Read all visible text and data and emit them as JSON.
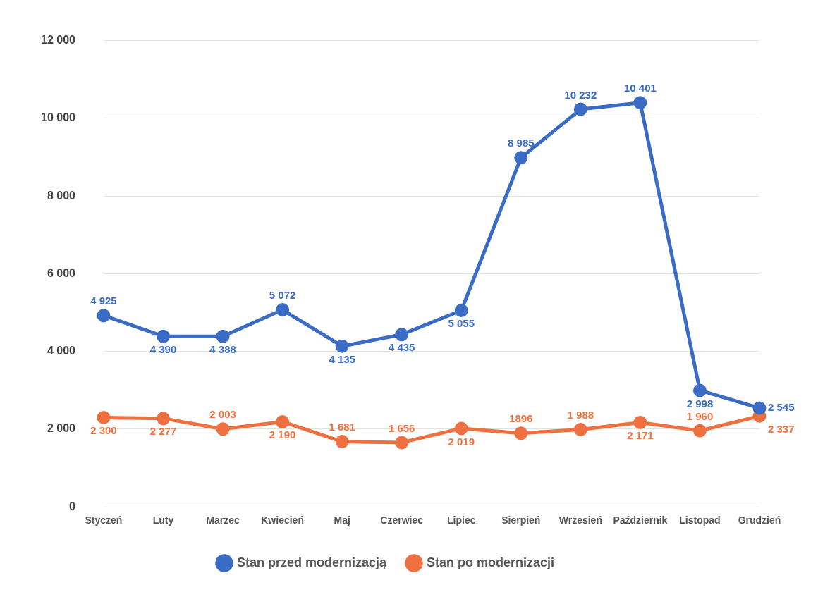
{
  "chart_data": {
    "type": "line",
    "categories": [
      "Styczeń",
      "Luty",
      "Marzec",
      "Kwiecień",
      "Maj",
      "Czerwiec",
      "Lipiec",
      "Sierpień",
      "Wrzesień",
      "Październik",
      "Listopad",
      "Grudzień"
    ],
    "series": [
      {
        "name": "Stan przed modernizacją",
        "color": "#3a6cc6",
        "values": [
          4925,
          4390,
          4388,
          5072,
          4135,
          4435,
          5055,
          8985,
          10232,
          10401,
          2998,
          2545
        ],
        "value_labels": [
          "4 925",
          "4 390",
          "4 388",
          "5 072",
          "4 135",
          "4 435",
          "5 055",
          "8 985",
          "10 232",
          "10 401",
          "2 998",
          "2 545"
        ]
      },
      {
        "name": "Stan po modernizacji",
        "color": "#ee7040",
        "values": [
          2300,
          2277,
          2003,
          2190,
          1681,
          1656,
          2019,
          1896,
          1988,
          2171,
          1960,
          2337
        ],
        "value_labels": [
          "2 300",
          "2 277",
          "2 003",
          "2 190",
          "1 681",
          "1 656",
          "2 019",
          "1896",
          "1 988",
          "2 171",
          "1 960",
          "2 337"
        ]
      }
    ],
    "ylim": [
      0,
      12000
    ],
    "yticks": [
      {
        "value": 0,
        "label": "0"
      },
      {
        "value": 2000,
        "label": "2 000"
      },
      {
        "value": 4000,
        "label": "4 000"
      },
      {
        "value": 6000,
        "label": "6 000"
      },
      {
        "value": 8000,
        "label": "8 000"
      },
      {
        "value": 10000,
        "label": "10 000"
      },
      {
        "value": 12000,
        "label": "12 000"
      }
    ],
    "grid": "y",
    "legend": "bottom",
    "marker": "circle",
    "line_style": "solid"
  }
}
